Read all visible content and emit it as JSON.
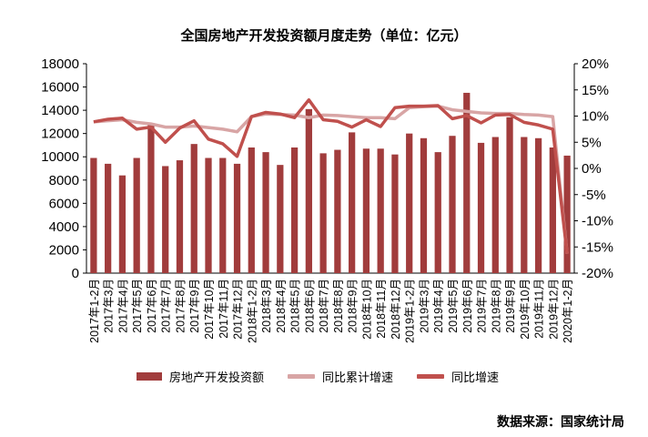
{
  "title": "全国房地产开发投资额月度走势（单位：亿元）",
  "source": "数据来源：国家统计局",
  "colors": {
    "bar": "#a13c3c",
    "cumulative": "#d8a5a5",
    "monthly": "#c0504d",
    "axis": "#000000"
  },
  "chart_data": {
    "type": "bar+line",
    "categories": [
      "2017年1-2月",
      "2017年3月",
      "2017年4月",
      "2017年5月",
      "2017年6月",
      "2017年7月",
      "2017年8月",
      "2017年9月",
      "2017年10月",
      "2017年11月",
      "2017年12月",
      "2018年1-2月",
      "2018年3月",
      "2018年4月",
      "2018年5月",
      "2018年6月",
      "2018年7月",
      "2018年8月",
      "2018年9月",
      "2018年10月",
      "2018年11月",
      "2018年12月",
      "2019年1-2月",
      "2019年3月",
      "2019年4月",
      "2019年5月",
      "2019年6月",
      "2019年7月",
      "2019年8月",
      "2019年9月",
      "2019年10月",
      "2019年11月",
      "2019年12月",
      "2020年1-2月"
    ],
    "left_axis": {
      "min": 0,
      "max": 18000,
      "ticks": [
        0,
        2000,
        4000,
        6000,
        8000,
        10000,
        12000,
        14000,
        16000,
        18000
      ]
    },
    "right_axis": {
      "min": -20,
      "max": 20,
      "ticks": [
        -20,
        -15,
        -10,
        -5,
        0,
        5,
        10,
        15,
        20
      ],
      "tick_labels": [
        "-20%",
        "-15%",
        "-10%",
        "-5%",
        "0%",
        "5%",
        "10%",
        "15%",
        "20%"
      ]
    },
    "series": [
      {
        "name": "房地产开发投资额",
        "type": "bar",
        "axis": "left",
        "values": [
          9900,
          9400,
          8400,
          9900,
          12900,
          9200,
          9700,
          11100,
          9900,
          9900,
          9400,
          10800,
          10400,
          9300,
          10800,
          14100,
          10300,
          10600,
          12100,
          10700,
          10700,
          10200,
          12000,
          11600,
          10400,
          11800,
          15500,
          11200,
          11700,
          13400,
          11700,
          11600,
          10800,
          10100
        ]
      },
      {
        "name": "同比累计增速",
        "type": "line",
        "axis": "left_scale_percent_right",
        "values": [
          8.9,
          9.1,
          9.3,
          8.8,
          8.5,
          7.9,
          7.9,
          8.1,
          7.8,
          7.5,
          7.0,
          9.9,
          10.4,
          10.3,
          10.2,
          9.7,
          10.2,
          10.1,
          9.9,
          9.7,
          9.7,
          9.5,
          11.6,
          11.8,
          11.9,
          11.2,
          10.9,
          10.6,
          10.5,
          10.5,
          10.3,
          10.2,
          9.9,
          -16.3
        ]
      },
      {
        "name": "同比增速",
        "type": "line",
        "axis": "right",
        "values": [
          8.9,
          9.4,
          9.6,
          7.5,
          7.9,
          5.0,
          7.7,
          9.1,
          5.6,
          4.7,
          2.3,
          9.9,
          10.7,
          10.4,
          9.7,
          13.1,
          9.3,
          9.0,
          7.9,
          9.3,
          8.0,
          11.6,
          11.9,
          11.9,
          12.0,
          9.5,
          10.1,
          8.7,
          10.2,
          10.3,
          8.8,
          8.3,
          7.5,
          -16.3
        ]
      }
    ]
  }
}
